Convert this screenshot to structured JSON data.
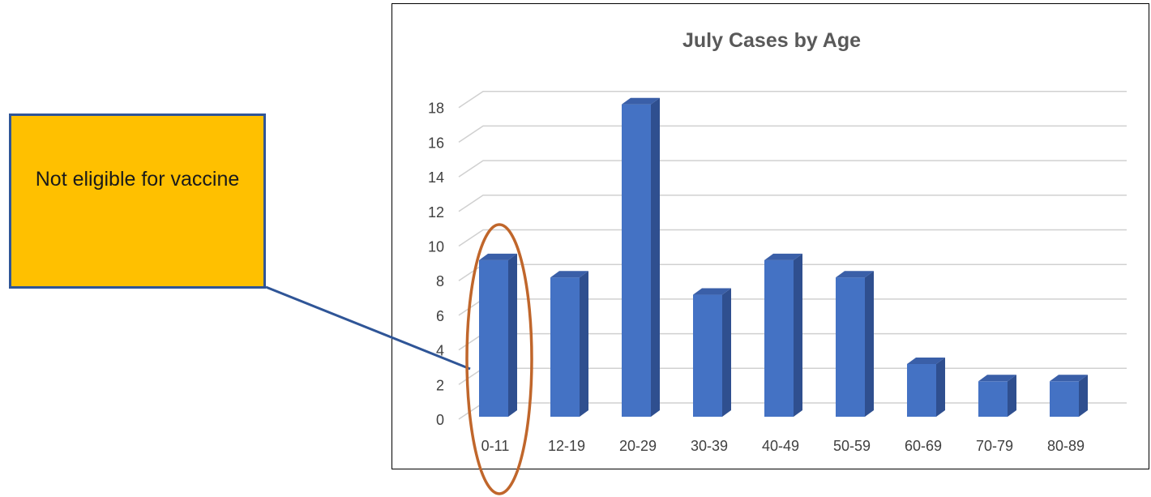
{
  "chart_data": {
    "type": "bar",
    "title": "July Cases by Age",
    "xlabel": "",
    "ylabel": "",
    "categories": [
      "0-11",
      "12-19",
      "20-29",
      "30-39",
      "40-49",
      "50-59",
      "60-69",
      "70-79",
      "80-89"
    ],
    "values": [
      9,
      8,
      18,
      7,
      9,
      8,
      3,
      2,
      2
    ],
    "ylim": [
      0,
      18
    ],
    "yticks": [
      "0",
      "2",
      "4",
      "6",
      "8",
      "10",
      "12",
      "14",
      "16",
      "18"
    ],
    "grid": true,
    "legend": "none",
    "bar_color": "#4472C4",
    "bar_side_color": "#2F4F8F",
    "bar_top_color": "#3A5FA8"
  },
  "callout": {
    "text": "Not eligible for vaccine",
    "fill_color": "#FFC000",
    "border_color": "#2F5597",
    "highlight_category": "0-11",
    "highlight_color": "#C0662B"
  }
}
